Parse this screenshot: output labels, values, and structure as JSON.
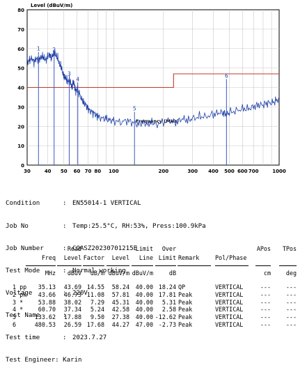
{
  "chart_data": {
    "type": "line",
    "ylabel": "Level (dBuV/m)",
    "xlabel": "Frequency (MHz)",
    "xscale": "log",
    "xlim": [
      30,
      1000
    ],
    "ylim": [
      0,
      80
    ],
    "x_ticks": [
      "30",
      "40",
      "50",
      "60",
      "70",
      "80",
      "100",
      "200",
      "300",
      "400",
      "500",
      "600",
      "700",
      "1000"
    ],
    "y_ticks": [
      "0",
      "10",
      "20",
      "30",
      "40",
      "50",
      "60",
      "70",
      "80"
    ],
    "limit_line": {
      "x": [
        30,
        230,
        230,
        1000
      ],
      "y": [
        40,
        40,
        47,
        47
      ],
      "color": "#c0392b"
    },
    "trace": {
      "color": "#1f3fa8",
      "x": [
        30,
        31,
        32,
        33,
        34,
        35,
        36,
        37,
        38,
        39,
        40,
        41,
        42,
        43,
        44,
        45,
        46,
        47,
        48,
        49,
        50,
        51,
        52,
        53,
        54,
        55,
        56,
        57,
        58,
        59,
        60,
        62,
        64,
        66,
        68,
        70,
        72,
        75,
        78,
        80,
        85,
        90,
        95,
        100,
        110,
        120,
        130,
        140,
        150,
        160,
        170,
        180,
        200,
        220,
        240,
        260,
        280,
        300,
        330,
        360,
        400,
        430,
        460,
        480,
        500,
        550,
        600,
        650,
        700,
        750,
        800,
        850,
        900,
        950,
        1000
      ],
      "y": [
        53,
        54,
        55,
        53,
        55,
        54,
        55,
        56,
        55,
        54,
        56,
        57,
        55,
        57,
        58,
        56,
        55,
        52,
        51,
        48,
        46,
        45,
        44,
        43,
        44,
        42,
        40,
        43,
        41,
        38,
        39,
        37,
        34,
        32,
        31,
        29,
        28,
        27,
        26,
        25,
        24,
        24,
        23,
        23,
        22,
        23,
        22,
        21,
        22,
        21,
        22,
        21,
        22,
        23,
        22,
        24,
        23,
        24,
        25,
        25,
        26,
        27,
        27,
        26,
        27,
        28,
        29,
        29,
        30,
        31,
        31,
        32,
        32,
        33,
        34
      ]
    },
    "markers": [
      {
        "label": "1",
        "x": 35.13,
        "y": 58.24
      },
      {
        "label": "2",
        "x": 43.66,
        "y": 57.81
      },
      {
        "label": "3",
        "x": 53.88,
        "y": 45.31
      },
      {
        "label": "4",
        "x": 60.7,
        "y": 42.58
      },
      {
        "label": "5",
        "x": 133.62,
        "y": 27.38
      },
      {
        "label": "6",
        "x": 480.53,
        "y": 44.27
      }
    ]
  },
  "test_info": [
    {
      "key": "Condition",
      "value": "EN55014-1 VERTICAL"
    },
    {
      "key": "Job No",
      "value": "Temp:25.5°C, RH:53%, Press:100.9kPa"
    },
    {
      "key": "Job Number",
      "value": "CQASZ20230701215E"
    },
    {
      "key": "Test Mode",
      "value": "Normal working"
    },
    {
      "key": "Voltage",
      "value": "220V"
    },
    {
      "key": "Test Name",
      "value": ""
    },
    {
      "key": "Test time",
      "value": "2023.7.27"
    }
  ],
  "engineer": {
    "key": "Test Engineer:",
    "value": "Karin"
  },
  "table": {
    "header1": [
      "",
      "Read",
      "",
      "",
      "Limit",
      "Over",
      "",
      "",
      "APos",
      "TPos"
    ],
    "header2": [
      "Freq",
      "Level",
      "Factor",
      "Level",
      "Line",
      "Limit",
      "Remark",
      "Pol/Phase",
      "",
      ""
    ],
    "units": [
      "MHz",
      "dBuV",
      "dB/m",
      "dBuV/m",
      "dBuV/m",
      "dB",
      "",
      "",
      "cm",
      "deg"
    ],
    "rows": [
      [
        "1 pp",
        "35.13",
        "43.69",
        "14.55",
        "58.24",
        "40.00",
        "18.24",
        "QP",
        "VERTICAL",
        "---",
        "---"
      ],
      [
        "2 pk",
        "43.66",
        "46.73",
        "11.08",
        "57.81",
        "40.00",
        "17.81",
        "Peak",
        "VERTICAL",
        "---",
        "---"
      ],
      [
        "3 *",
        "53.88",
        "38.02",
        "7.29",
        "45.31",
        "40.00",
        "5.31",
        "Peak",
        "VERTICAL",
        "---",
        "---"
      ],
      [
        "4 *",
        "60.70",
        "37.34",
        "5.24",
        "42.58",
        "40.00",
        "2.58",
        "Peak",
        "VERTICAL",
        "---",
        "---"
      ],
      [
        "5",
        "133.62",
        "17.88",
        "9.50",
        "27.38",
        "40.00",
        "-12.62",
        "Peak",
        "VERTICAL",
        "---",
        "---"
      ],
      [
        "6",
        "480.53",
        "26.59",
        "17.68",
        "44.27",
        "47.00",
        "-2.73",
        "Peak",
        "VERTICAL",
        "---",
        "---"
      ]
    ]
  }
}
